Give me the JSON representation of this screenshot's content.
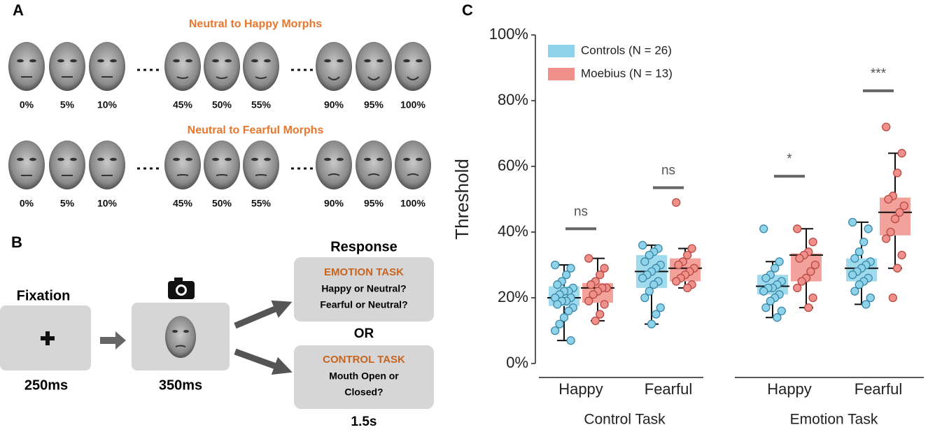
{
  "panel_a": {
    "label": "A",
    "rows": [
      {
        "title": "Neutral to Happy Morphs",
        "labels": [
          "0%",
          "5%",
          "10%",
          "45%",
          "50%",
          "55%",
          "90%",
          "95%",
          "100%"
        ]
      },
      {
        "title": "Neutral to Fearful Morphs",
        "labels": [
          "0%",
          "5%",
          "10%",
          "45%",
          "50%",
          "55%",
          "90%",
          "95%",
          "100%"
        ]
      }
    ]
  },
  "panel_b": {
    "label": "B",
    "fixation": {
      "title": "Fixation",
      "duration": "250ms"
    },
    "stimulus": {
      "duration": "350ms"
    },
    "response": {
      "title": "Response",
      "or": "OR",
      "duration": "1.5s",
      "emotion_task": {
        "title": "EMOTION TASK",
        "lines": [
          "Happy or Neutral?",
          "Fearful or Neutral?"
        ]
      },
      "control_task": {
        "title": "CONTROL TASK",
        "lines": [
          "Mouth Open or",
          "Closed?"
        ]
      }
    }
  },
  "chart_data": {
    "type": "box",
    "panel_label": "C",
    "ylabel": "Threshold",
    "ylim": [
      0,
      100
    ],
    "yticks": [
      {
        "value": 0,
        "label": "0%"
      },
      {
        "value": 20,
        "label": "20%"
      },
      {
        "value": 40,
        "label": "40%"
      },
      {
        "value": 60,
        "label": "60%"
      },
      {
        "value": 80,
        "label": "80%"
      },
      {
        "value": 100,
        "label": "100%"
      }
    ],
    "series": [
      {
        "name": "Controls (N = 26)",
        "color": "#8fd3ea"
      },
      {
        "name": "Moebius (N = 13)",
        "color": "#f0908a"
      }
    ],
    "groups": [
      {
        "label": "Control Task",
        "categories": [
          {
            "label": "Happy",
            "significance": {
              "label": "ns",
              "level": 41
            },
            "boxes": [
              {
                "min": 7,
                "q1": 17.5,
                "median": 20,
                "q3": 23.5,
                "max": 30,
                "points": [
                  30,
                  29,
                  27,
                  25,
                  24,
                  23,
                  22,
                  22,
                  21,
                  20,
                  20,
                  19,
                  19,
                  18,
                  17,
                  16,
                  14,
                  12,
                  10,
                  7
                ]
              },
              {
                "min": 13,
                "q1": 18.5,
                "median": 23,
                "q3": 24.5,
                "max": 32,
                "points": [
                  32,
                  29,
                  27,
                  25,
                  24,
                  23,
                  23,
                  22,
                  21,
                  19,
                  18,
                  15,
                  13
                ]
              }
            ]
          },
          {
            "label": "Fearful",
            "significance": {
              "label": "ns",
              "level": 53.5
            },
            "boxes": [
              {
                "min": 12,
                "q1": 23,
                "median": 28,
                "q3": 33,
                "max": 36,
                "points": [
                  36,
                  35,
                  34,
                  33,
                  31,
                  30,
                  29,
                  28,
                  27,
                  26,
                  25,
                  24,
                  22,
                  20,
                  17,
                  15,
                  12
                ]
              },
              {
                "min": 23,
                "q1": 25,
                "median": 29,
                "q3": 32,
                "max": 35,
                "points": [
                  49,
                  35,
                  33,
                  31,
                  30,
                  29,
                  28,
                  27,
                  26,
                  25,
                  24,
                  23
                ]
              }
            ]
          }
        ]
      },
      {
        "label": "Emotion Task",
        "categories": [
          {
            "label": "Happy",
            "significance": {
              "label": "*",
              "level": 57
            },
            "boxes": [
              {
                "min": 14,
                "q1": 21,
                "median": 23.5,
                "q3": 27,
                "max": 31,
                "points": [
                  41,
                  31,
                  29,
                  27,
                  26,
                  25,
                  24,
                  23,
                  23,
                  22,
                  21,
                  20,
                  19,
                  17,
                  16,
                  14
                ]
              },
              {
                "min": 17,
                "q1": 25,
                "median": 33,
                "q3": 33.5,
                "max": 41,
                "points": [
                  41,
                  37,
                  34,
                  33,
                  32,
                  30,
                  28,
                  26,
                  25,
                  23,
                  20,
                  17
                ]
              }
            ]
          },
          {
            "label": "Fearful",
            "significance": {
              "label": "***",
              "level": 83
            },
            "boxes": [
              {
                "min": 18,
                "q1": 25,
                "median": 29,
                "q3": 32,
                "max": 43,
                "points": [
                  43,
                  41,
                  37,
                  34,
                  32,
                  31,
                  30,
                  29,
                  28,
                  27,
                  26,
                  25,
                  24,
                  22,
                  20,
                  18
                ]
              },
              {
                "min": 29,
                "q1": 39,
                "median": 46,
                "q3": 50.5,
                "max": 64,
                "points": [
                  72,
                  64,
                  58,
                  51,
                  50,
                  48,
                  46,
                  44,
                  40,
                  38,
                  33,
                  29,
                  20
                ]
              }
            ]
          }
        ]
      }
    ]
  }
}
